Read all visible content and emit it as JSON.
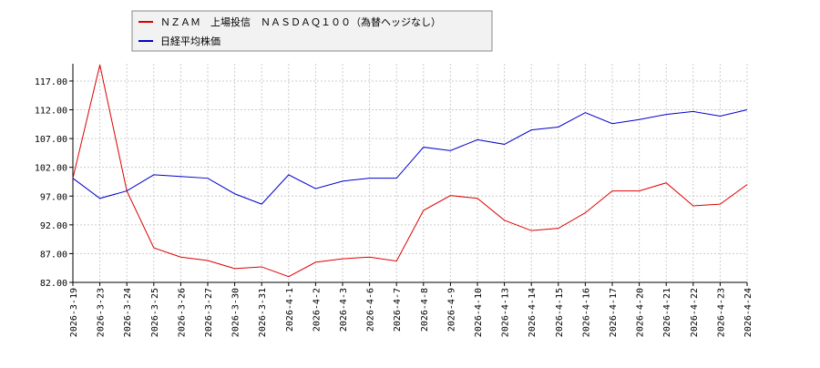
{
  "chart_data": {
    "type": "line",
    "categories": [
      "2026-3-19",
      "2026-3-23",
      "2026-3-24",
      "2026-3-25",
      "2026-3-26",
      "2026-3-27",
      "2026-3-30",
      "2026-3-31",
      "2026-4-1",
      "2026-4-2",
      "2026-4-3",
      "2026-4-6",
      "2026-4-7",
      "2026-4-8",
      "2026-4-9",
      "2026-4-10",
      "2026-4-13",
      "2026-4-14",
      "2026-4-15",
      "2026-4-16",
      "2026-4-17",
      "2026-4-20",
      "2026-4-21",
      "2026-4-22",
      "2026-4-23",
      "2026-4-24"
    ],
    "series": [
      {
        "name": "ＮＺＡＭ　上場投信　ＮＡＳＤＡＱ１００（為替ヘッジなし）",
        "color": "#dd0000",
        "values": [
          100.1,
          119.8,
          97.9,
          88.0,
          86.4,
          85.8,
          84.4,
          84.7,
          83.0,
          85.5,
          86.1,
          86.4,
          85.7,
          94.5,
          97.1,
          96.6,
          92.8,
          91.0,
          91.4,
          94.1,
          97.9,
          97.9,
          99.3,
          95.3,
          95.6,
          99.0
        ]
      },
      {
        "name": "日経平均株価",
        "color": "#0000cc",
        "values": [
          100.1,
          96.6,
          97.9,
          100.7,
          100.4,
          100.1,
          97.4,
          95.6,
          100.7,
          98.3,
          99.6,
          100.1,
          100.1,
          105.5,
          104.9,
          106.8,
          106.0,
          108.5,
          109.0,
          111.5,
          109.6,
          110.3,
          111.2,
          111.7,
          110.9,
          112.0
        ]
      }
    ],
    "ylim": [
      82,
      120
    ],
    "yticks": [
      {
        "value": 82,
        "label": "82.00"
      },
      {
        "value": 87,
        "label": "87.00"
      },
      {
        "value": 92,
        "label": "92.00"
      },
      {
        "value": 97,
        "label": "97.00"
      },
      {
        "value": 102,
        "label": "102.00"
      },
      {
        "value": 107,
        "label": "107.00"
      },
      {
        "value": 112,
        "label": "112.00"
      },
      {
        "value": 117,
        "label": "117.00"
      }
    ],
    "grid": true
  }
}
